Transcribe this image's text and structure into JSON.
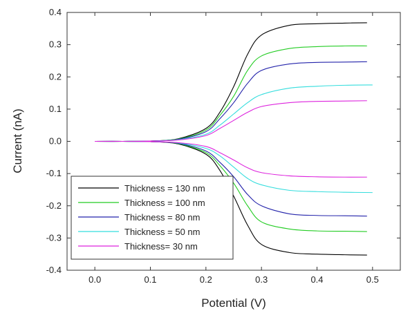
{
  "chart_data": {
    "type": "line",
    "title": "",
    "xlabel": "Potential (V)",
    "ylabel": "Current (nA)",
    "xlim": [
      -0.05,
      0.55
    ],
    "ylim": [
      -0.4,
      0.4
    ],
    "x_ticks": [
      "0.0",
      "0.1",
      "0.2",
      "0.3",
      "0.4",
      "0.5"
    ],
    "y_ticks": [
      "0.4",
      "0.3",
      "0.2",
      "0.1",
      "0.0",
      "-0.1",
      "-0.2",
      "-0.3",
      "-0.4"
    ],
    "grid": false,
    "legend_position": "bottom-left",
    "series": [
      {
        "name": "Thickness = 130 nm",
        "color": "#000000",
        "x": [
          0,
          0.05,
          0.1,
          0.15,
          0.2,
          0.225,
          0.25,
          0.275,
          0.3,
          0.35,
          0.4,
          0.45,
          0.49
        ],
        "upper": [
          0,
          0,
          0.001,
          0.008,
          0.04,
          0.09,
          0.17,
          0.27,
          0.33,
          0.36,
          0.365,
          0.367,
          0.368
        ],
        "lower": [
          0,
          0,
          -0.001,
          -0.008,
          -0.04,
          -0.09,
          -0.17,
          -0.26,
          -0.32,
          -0.345,
          -0.35,
          -0.352,
          -0.353
        ]
      },
      {
        "name": "Thickness = 100 nm",
        "color": "#22cc22",
        "x": [
          0,
          0.05,
          0.1,
          0.15,
          0.2,
          0.225,
          0.25,
          0.275,
          0.3,
          0.35,
          0.4,
          0.45,
          0.49
        ],
        "upper": [
          0,
          0,
          0.001,
          0.007,
          0.035,
          0.08,
          0.14,
          0.22,
          0.265,
          0.288,
          0.294,
          0.296,
          0.296
        ],
        "lower": [
          0,
          0,
          -0.001,
          -0.007,
          -0.035,
          -0.075,
          -0.13,
          -0.2,
          -0.25,
          -0.272,
          -0.278,
          -0.279,
          -0.28
        ]
      },
      {
        "name": "Thickness = 80 nm",
        "color": "#2222aa",
        "x": [
          0,
          0.05,
          0.1,
          0.15,
          0.2,
          0.225,
          0.25,
          0.275,
          0.3,
          0.35,
          0.4,
          0.45,
          0.49
        ],
        "upper": [
          0,
          0,
          0.001,
          0.006,
          0.03,
          0.07,
          0.12,
          0.18,
          0.22,
          0.24,
          0.245,
          0.246,
          0.247
        ],
        "lower": [
          0,
          0,
          -0.001,
          -0.006,
          -0.03,
          -0.065,
          -0.11,
          -0.165,
          -0.2,
          -0.225,
          -0.23,
          -0.231,
          -0.232
        ]
      },
      {
        "name": "Thickness = 50 nm",
        "color": "#33dddd",
        "x": [
          0,
          0.05,
          0.1,
          0.15,
          0.2,
          0.225,
          0.25,
          0.275,
          0.3,
          0.35,
          0.4,
          0.45,
          0.5
        ],
        "upper": [
          0,
          0,
          0.001,
          0.005,
          0.022,
          0.05,
          0.085,
          0.12,
          0.145,
          0.165,
          0.171,
          0.174,
          0.175
        ],
        "lower": [
          0,
          0,
          -0.001,
          -0.005,
          -0.022,
          -0.045,
          -0.08,
          -0.115,
          -0.135,
          -0.152,
          -0.156,
          -0.158,
          -0.159
        ]
      },
      {
        "name": "Thickness= 30 nm",
        "color": "#dd22dd",
        "x": [
          0,
          0.05,
          0.1,
          0.15,
          0.2,
          0.225,
          0.25,
          0.275,
          0.3,
          0.35,
          0.4,
          0.45,
          0.49
        ],
        "upper": [
          0,
          0,
          0.001,
          0.004,
          0.018,
          0.04,
          0.065,
          0.09,
          0.108,
          0.12,
          0.124,
          0.125,
          0.126
        ],
        "lower": [
          0,
          0,
          -0.001,
          -0.004,
          -0.016,
          -0.035,
          -0.058,
          -0.082,
          -0.097,
          -0.107,
          -0.11,
          -0.111,
          -0.111
        ]
      }
    ]
  }
}
